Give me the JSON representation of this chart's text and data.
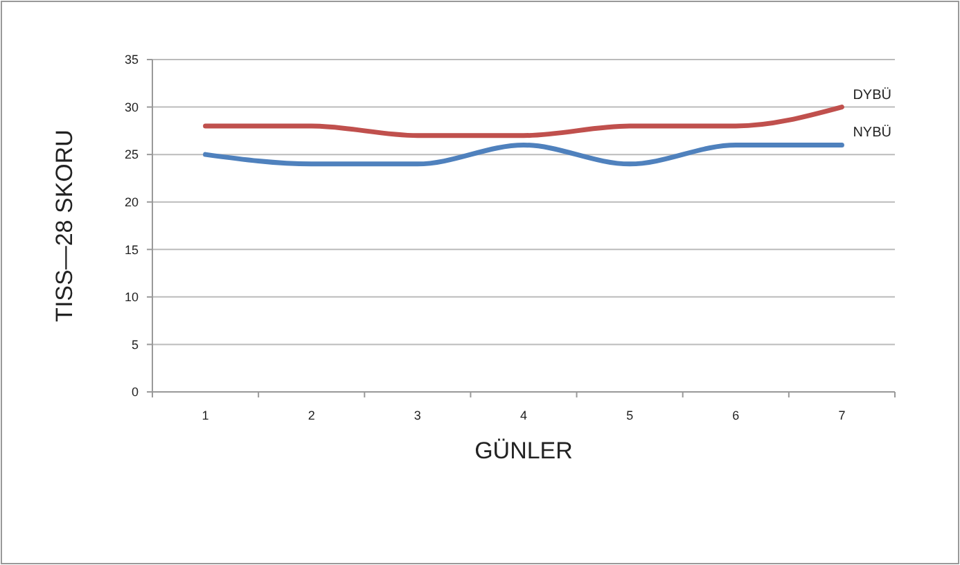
{
  "chart_data": {
    "type": "line",
    "xlabel": "GÜNLER",
    "ylabel": "TISS—28 SKORU",
    "categories": [
      "1",
      "2",
      "3",
      "4",
      "5",
      "6",
      "7"
    ],
    "ylim": [
      0,
      35
    ],
    "yticks": [
      0,
      5,
      10,
      15,
      20,
      25,
      30,
      35
    ],
    "grid": "y",
    "marker": "none",
    "series": [
      {
        "name": "DYBÜ",
        "color": "#c0504d",
        "values": [
          28,
          28,
          27,
          27,
          28,
          28,
          30
        ]
      },
      {
        "name": "NYBÜ",
        "color": "#4f81bd",
        "values": [
          25,
          24,
          24,
          26,
          24,
          26,
          26
        ]
      }
    ]
  }
}
